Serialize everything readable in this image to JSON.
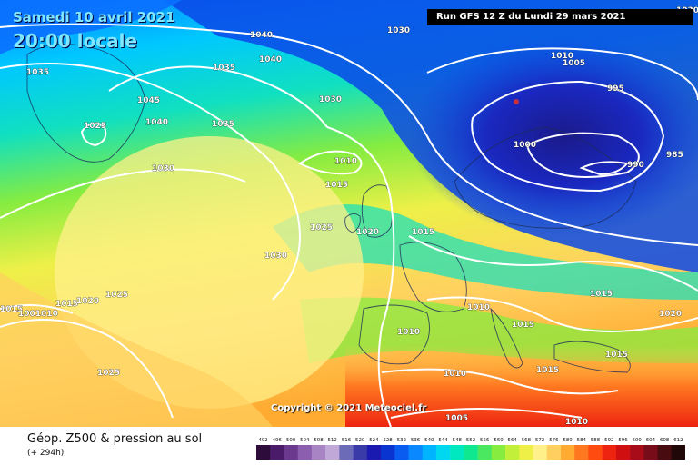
{
  "header": {
    "date": "Samedi 10 avril 2021",
    "time": "20:00 locale",
    "run": "Run GFS 12 Z du Lundi 29 mars 2021"
  },
  "copyright": "Copyright © 2021 Meteociel.fr",
  "legend": {
    "title": "Géop. Z500 & pression au sol",
    "subtitle": "(+ 294h)",
    "scale": [
      "492",
      "496",
      "500",
      "504",
      "508",
      "512",
      "516",
      "520",
      "524",
      "528",
      "532",
      "536",
      "540",
      "544",
      "548",
      "552",
      "556",
      "560",
      "564",
      "568",
      "572",
      "576",
      "580",
      "584",
      "588",
      "592",
      "596",
      "600",
      "604",
      "608",
      "612"
    ],
    "scale_colors": [
      "#2d0b3b",
      "#4a1b68",
      "#6b3a8f",
      "#8c5eb0",
      "#a884c5",
      "#c0a8d8",
      "#6b6bb8",
      "#3a3aa8",
      "#1a1ab0",
      "#0a34d0",
      "#0a5cf0",
      "#0a88ff",
      "#00b4ff",
      "#00d8f0",
      "#00e8c0",
      "#10e890",
      "#4ae860",
      "#86ec40",
      "#c2f03a",
      "#eef048",
      "#fff08a",
      "#ffd060",
      "#ffaa30",
      "#ff7820",
      "#ff4a10",
      "#ee2410",
      "#d01010",
      "#a80c18",
      "#780c18",
      "#480c10",
      "#200808"
    ]
  },
  "pressure_labels": [
    {
      "text": "1040"
    },
    {
      "text": "1030"
    },
    {
      "text": "1035"
    },
    {
      "text": "1040"
    },
    {
      "text": "1035"
    },
    {
      "text": "1045"
    },
    {
      "text": "1040"
    },
    {
      "text": "1025"
    },
    {
      "text": "1030"
    },
    {
      "text": "1035"
    },
    {
      "text": "1030"
    },
    {
      "text": "1010"
    },
    {
      "text": "1015"
    },
    {
      "text": "1025"
    },
    {
      "text": "1020"
    },
    {
      "text": "1015"
    },
    {
      "text": "1030"
    },
    {
      "text": "1010"
    },
    {
      "text": "1005"
    },
    {
      "text": "995"
    },
    {
      "text": "1000"
    },
    {
      "text": "990"
    },
    {
      "text": "985"
    },
    {
      "text": "1030"
    },
    {
      "text": "1015"
    },
    {
      "text": "1020"
    },
    {
      "text": "1025"
    },
    {
      "text": "1015"
    },
    {
      "text": "1001010"
    },
    {
      "text": "1010"
    },
    {
      "text": "1010"
    },
    {
      "text": "1015"
    },
    {
      "text": "1020"
    },
    {
      "text": "1015"
    },
    {
      "text": "1015"
    },
    {
      "text": "1015"
    },
    {
      "text": "1025"
    },
    {
      "text": "1010"
    },
    {
      "text": "1005"
    },
    {
      "text": "1010"
    }
  ]
}
